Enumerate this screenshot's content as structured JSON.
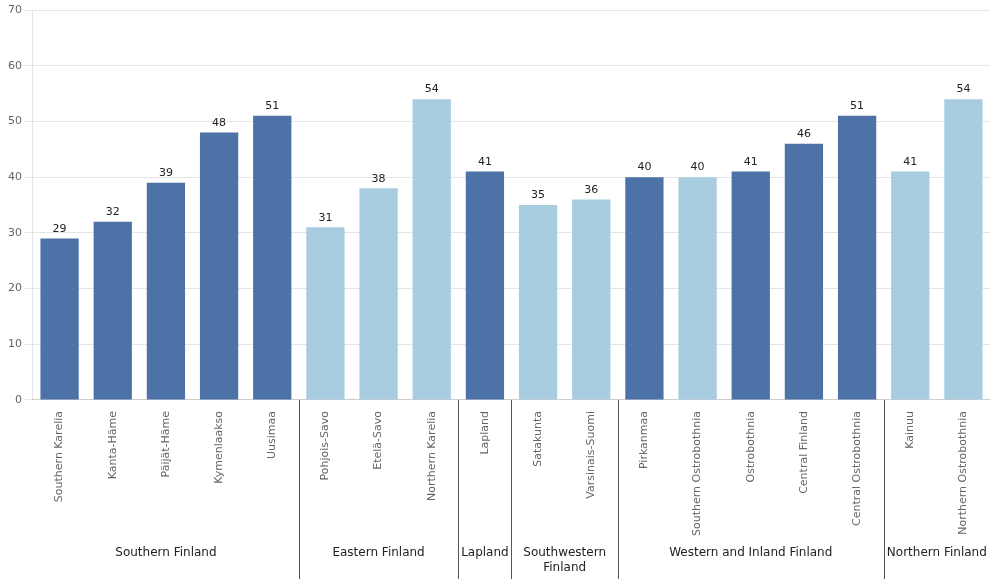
{
  "chart_data": {
    "type": "bar",
    "categories": [
      "Southern Karelia",
      "Kanta-Häme",
      "Päijät-Häme",
      "Kymenlaakso",
      "Uusimaa",
      "Pohjois-Savo",
      "Etelä-Savo",
      "Northern Karelia",
      "Lapland",
      "Satakunta",
      "Varsinais-Suomi",
      "Pirkanmaa",
      "Southern Ostrobothnia",
      "Ostrobothnia",
      "Central Finland",
      "Central Ostrobothnia",
      "Kainuu",
      "Northern Ostrobothnia"
    ],
    "values": [
      29,
      32,
      39,
      48,
      51,
      31,
      38,
      54,
      41,
      35,
      36,
      40,
      40,
      41,
      46,
      51,
      41,
      54
    ],
    "colors": [
      "#4C72A8",
      "#4C72A8",
      "#4C72A8",
      "#4C72A8",
      "#4C72A8",
      "#A8CCE0",
      "#A8CCE0",
      "#A8CCE0",
      "#4C72A8",
      "#A8CCE0",
      "#A8CCE0",
      "#4C72A8",
      "#A8CCE0",
      "#4C72A8",
      "#4C72A8",
      "#4C72A8",
      "#A8CCE0",
      "#A8CCE0"
    ],
    "groups": [
      "Southern Finland",
      "Southern Finland",
      "Southern Finland",
      "Southern Finland",
      "Southern Finland",
      "Eastern Finland",
      "Eastern Finland",
      "Eastern Finland",
      "Lapland",
      "Southwestern\nFinland",
      "Southwestern\nFinland",
      "Western and Inland Finland",
      "Western and Inland Finland",
      "Western and Inland Finland",
      "Western and Inland Finland",
      "Western and Inland Finland",
      "Northern Finland",
      "Northern Finland"
    ],
    "ylim": [
      0,
      70
    ],
    "yticks": [
      0,
      10,
      20,
      30,
      40,
      50,
      60,
      70
    ],
    "grid": true,
    "data_labels": true
  }
}
